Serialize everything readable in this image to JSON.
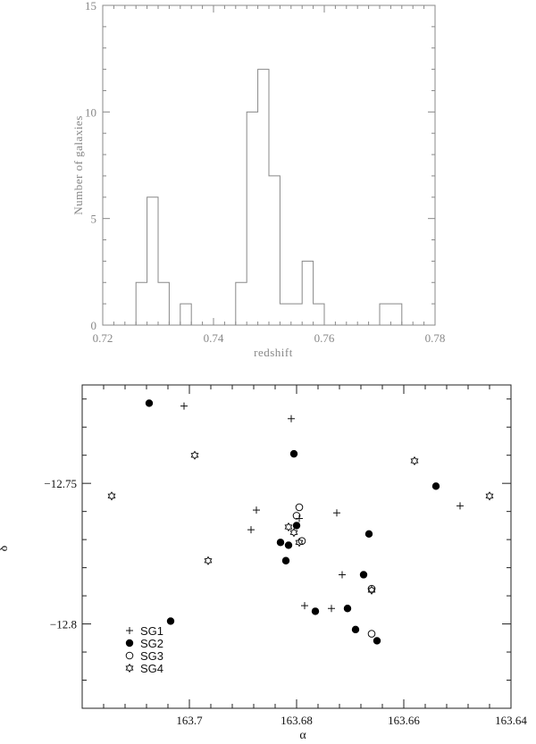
{
  "chart_data": [
    {
      "type": "bar",
      "subtype": "histogram-step",
      "xlabel": "redshift",
      "ylabel": "Number of galaxies",
      "xlim": [
        0.72,
        0.78
      ],
      "ylim": [
        0,
        15
      ],
      "xticks": [
        "0.72",
        "0.74",
        "0.76",
        "0.78"
      ],
      "yticks": [
        "0",
        "5",
        "10",
        "15"
      ],
      "bin_width": 0.002,
      "bins": [
        {
          "start": 0.726,
          "count": 2
        },
        {
          "start": 0.728,
          "count": 6
        },
        {
          "start": 0.73,
          "count": 2
        },
        {
          "start": 0.732,
          "count": 0
        },
        {
          "start": 0.734,
          "count": 1
        },
        {
          "start": 0.736,
          "count": 0
        },
        {
          "start": 0.738,
          "count": 0
        },
        {
          "start": 0.74,
          "count": 0
        },
        {
          "start": 0.742,
          "count": 0
        },
        {
          "start": 0.744,
          "count": 2
        },
        {
          "start": 0.746,
          "count": 10
        },
        {
          "start": 0.748,
          "count": 12
        },
        {
          "start": 0.75,
          "count": 7
        },
        {
          "start": 0.752,
          "count": 1
        },
        {
          "start": 0.754,
          "count": 1
        },
        {
          "start": 0.756,
          "count": 3
        },
        {
          "start": 0.758,
          "count": 1
        },
        {
          "start": 0.76,
          "count": 0
        },
        {
          "start": 0.762,
          "count": 0
        },
        {
          "start": 0.764,
          "count": 0
        },
        {
          "start": 0.766,
          "count": 0
        },
        {
          "start": 0.768,
          "count": 0
        },
        {
          "start": 0.77,
          "count": 1
        },
        {
          "start": 0.772,
          "count": 1
        }
      ]
    },
    {
      "type": "scatter",
      "xlabel": "α",
      "ylabel": "δ",
      "xlim": [
        163.72,
        163.64
      ],
      "ylim": [
        -12.83,
        -12.715
      ],
      "x_reversed": true,
      "xticks": [
        "163.7",
        "163.68",
        "163.66",
        "163.64"
      ],
      "yticks": [
        "−12.75",
        "−12.8"
      ],
      "legend_position": "bottom-left",
      "series": [
        {
          "name": "SG1",
          "marker": "plus",
          "points": [
            [
              163.701,
              -12.7225
            ],
            [
              163.681,
              -12.727
            ],
            [
              163.6875,
              -12.7595
            ],
            [
              163.6725,
              -12.7605
            ],
            [
              163.6795,
              -12.7625
            ],
            [
              163.6715,
              -12.7825
            ],
            [
              163.6785,
              -12.7935
            ],
            [
              163.6735,
              -12.7945
            ],
            [
              163.6885,
              -12.7665
            ],
            [
              163.6495,
              -12.758
            ]
          ]
        },
        {
          "name": "SG2",
          "marker": "filled-circle",
          "points": [
            [
              163.7075,
              -12.7215
            ],
            [
              163.6805,
              -12.7395
            ],
            [
              163.654,
              -12.751
            ],
            [
              163.68,
              -12.765
            ],
            [
              163.6665,
              -12.768
            ],
            [
              163.683,
              -12.771
            ],
            [
              163.6815,
              -12.772
            ],
            [
              163.682,
              -12.7775
            ],
            [
              163.6675,
              -12.7825
            ],
            [
              163.6705,
              -12.7945
            ],
            [
              163.6765,
              -12.7955
            ],
            [
              163.7035,
              -12.799
            ],
            [
              163.669,
              -12.802
            ],
            [
              163.665,
              -12.806
            ]
          ]
        },
        {
          "name": "SG3",
          "marker": "open-circle",
          "points": [
            [
              163.6795,
              -12.7585
            ],
            [
              163.68,
              -12.7615
            ],
            [
              163.679,
              -12.7705
            ],
            [
              163.666,
              -12.8035
            ],
            [
              163.666,
              -12.7875
            ]
          ]
        },
        {
          "name": "SG4",
          "marker": "star",
          "points": [
            [
              163.7145,
              -12.7545
            ],
            [
              163.699,
              -12.74
            ],
            [
              163.6965,
              -12.7775
            ],
            [
              163.658,
              -12.742
            ],
            [
              163.644,
              -12.7545
            ],
            [
              163.6815,
              -12.7655
            ],
            [
              163.6805,
              -12.7675
            ],
            [
              163.6795,
              -12.771
            ],
            [
              163.666,
              -12.788
            ]
          ]
        }
      ]
    }
  ]
}
